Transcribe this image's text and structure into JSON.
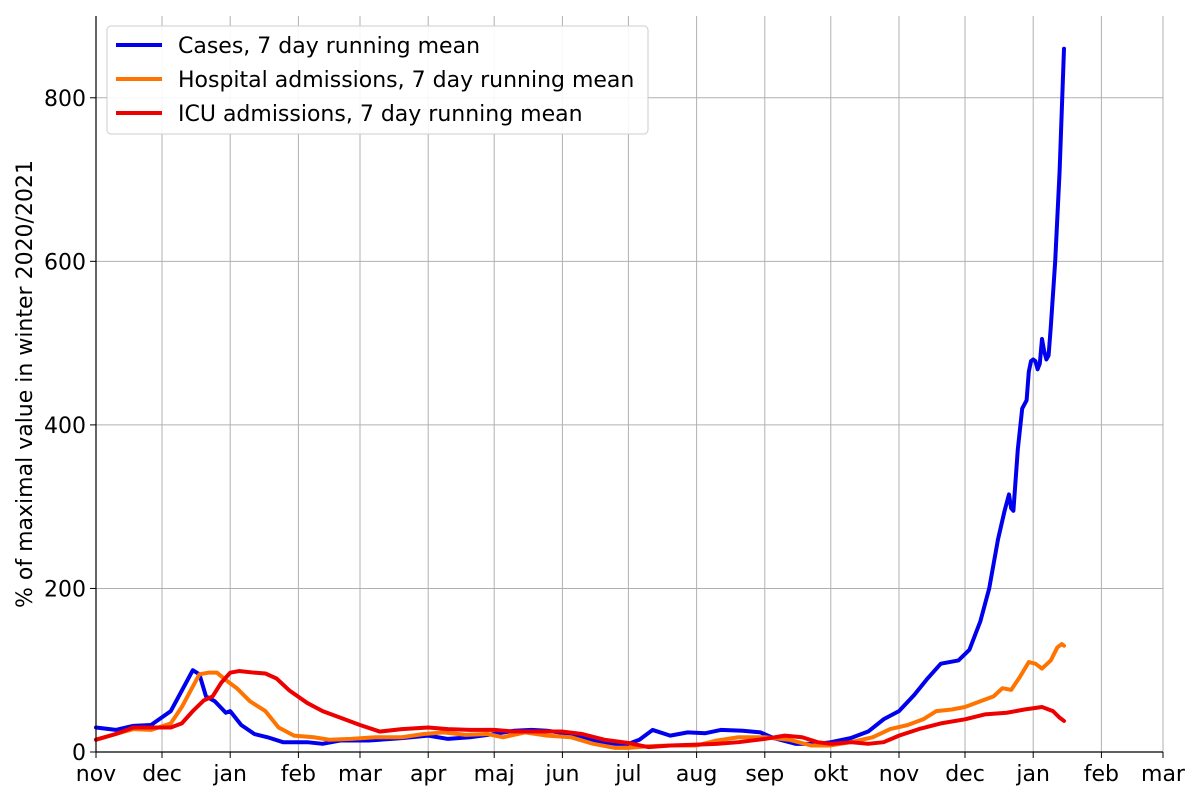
{
  "chart_data": {
    "type": "line",
    "ylabel": "% of maximal value in winter 2020/2021",
    "xlabel": "",
    "title": "",
    "x_range": [
      "2020-11-01",
      "2022-03-01"
    ],
    "ylim": [
      0,
      900
    ],
    "grid": true,
    "legend_position": "top-left",
    "x_ticks": [
      {
        "date": "2020-11-01",
        "label": "nov"
      },
      {
        "date": "2020-12-01",
        "label": "dec"
      },
      {
        "date": "2021-01-01",
        "label": "jan"
      },
      {
        "date": "2021-02-01",
        "label": "feb"
      },
      {
        "date": "2021-03-01",
        "label": "mar"
      },
      {
        "date": "2021-04-01",
        "label": "apr"
      },
      {
        "date": "2021-05-01",
        "label": "maj"
      },
      {
        "date": "2021-06-01",
        "label": "jun"
      },
      {
        "date": "2021-07-01",
        "label": "jul"
      },
      {
        "date": "2021-08-01",
        "label": "aug"
      },
      {
        "date": "2021-09-01",
        "label": "sep"
      },
      {
        "date": "2021-10-01",
        "label": "okt"
      },
      {
        "date": "2021-11-01",
        "label": "nov"
      },
      {
        "date": "2021-12-01",
        "label": "dec"
      },
      {
        "date": "2022-01-01",
        "label": "jan"
      },
      {
        "date": "2022-02-01",
        "label": "feb"
      },
      {
        "date": "2022-03-01",
        "label": "mar"
      }
    ],
    "y_ticks": [
      0,
      200,
      400,
      600,
      800
    ],
    "series": [
      {
        "name": "Cases, 7 day running mean",
        "color": "#0000ee",
        "points": [
          [
            "2020-11-01",
            30
          ],
          [
            "2020-11-10",
            27
          ],
          [
            "2020-11-18",
            32
          ],
          [
            "2020-11-26",
            33
          ],
          [
            "2020-12-05",
            50
          ],
          [
            "2020-12-12",
            85
          ],
          [
            "2020-12-15",
            100
          ],
          [
            "2020-12-18",
            95
          ],
          [
            "2020-12-21",
            68
          ],
          [
            "2020-12-25",
            62
          ],
          [
            "2020-12-30",
            48
          ],
          [
            "2021-01-01",
            50
          ],
          [
            "2021-01-06",
            33
          ],
          [
            "2021-01-12",
            22
          ],
          [
            "2021-01-18",
            18
          ],
          [
            "2021-01-25",
            12
          ],
          [
            "2021-02-05",
            12
          ],
          [
            "2021-02-12",
            10
          ],
          [
            "2021-02-20",
            14
          ],
          [
            "2021-03-05",
            14
          ],
          [
            "2021-03-20",
            17
          ],
          [
            "2021-04-01",
            20
          ],
          [
            "2021-04-10",
            16
          ],
          [
            "2021-04-20",
            18
          ],
          [
            "2021-05-01",
            22
          ],
          [
            "2021-05-10",
            26
          ],
          [
            "2021-05-18",
            27
          ],
          [
            "2021-05-25",
            26
          ],
          [
            "2021-06-05",
            22
          ],
          [
            "2021-06-15",
            14
          ],
          [
            "2021-06-25",
            10
          ],
          [
            "2021-07-01",
            10
          ],
          [
            "2021-07-06",
            15
          ],
          [
            "2021-07-12",
            27
          ],
          [
            "2021-07-20",
            20
          ],
          [
            "2021-07-28",
            24
          ],
          [
            "2021-08-05",
            23
          ],
          [
            "2021-08-12",
            27
          ],
          [
            "2021-08-22",
            26
          ],
          [
            "2021-08-30",
            24
          ],
          [
            "2021-09-05",
            17
          ],
          [
            "2021-09-15",
            10
          ],
          [
            "2021-09-25",
            10
          ],
          [
            "2021-10-01",
            12
          ],
          [
            "2021-10-10",
            17
          ],
          [
            "2021-10-18",
            25
          ],
          [
            "2021-10-25",
            40
          ],
          [
            "2021-11-01",
            50
          ],
          [
            "2021-11-08",
            70
          ],
          [
            "2021-11-14",
            90
          ],
          [
            "2021-11-20",
            108
          ],
          [
            "2021-11-24",
            110
          ],
          [
            "2021-11-28",
            112
          ],
          [
            "2021-12-03",
            125
          ],
          [
            "2021-12-08",
            160
          ],
          [
            "2021-12-12",
            200
          ],
          [
            "2021-12-16",
            260
          ],
          [
            "2021-12-19",
            295
          ],
          [
            "2021-12-21",
            315
          ],
          [
            "2021-12-22",
            298
          ],
          [
            "2021-12-23",
            295
          ],
          [
            "2021-12-25",
            370
          ],
          [
            "2021-12-27",
            420
          ],
          [
            "2021-12-29",
            430
          ],
          [
            "2021-12-30",
            465
          ],
          [
            "2021-12-31",
            478
          ],
          [
            "2022-01-01",
            480
          ],
          [
            "2022-01-02",
            478
          ],
          [
            "2022-01-03",
            468
          ],
          [
            "2022-01-04",
            475
          ],
          [
            "2022-01-05",
            505
          ],
          [
            "2022-01-06",
            490
          ],
          [
            "2022-01-07",
            480
          ],
          [
            "2022-01-08",
            485
          ],
          [
            "2022-01-09",
            520
          ],
          [
            "2022-01-11",
            600
          ],
          [
            "2022-01-13",
            710
          ],
          [
            "2022-01-15",
            860
          ]
        ]
      },
      {
        "name": "Hospital admissions, 7 day running mean",
        "color": "#ff7400",
        "points": [
          [
            "2020-11-01",
            15
          ],
          [
            "2020-11-10",
            22
          ],
          [
            "2020-11-18",
            28
          ],
          [
            "2020-11-26",
            27
          ],
          [
            "2020-12-05",
            35
          ],
          [
            "2020-12-10",
            55
          ],
          [
            "2020-12-15",
            80
          ],
          [
            "2020-12-18",
            95
          ],
          [
            "2020-12-22",
            97
          ],
          [
            "2020-12-26",
            97
          ],
          [
            "2020-12-30",
            88
          ],
          [
            "2021-01-04",
            78
          ],
          [
            "2021-01-10",
            62
          ],
          [
            "2021-01-17",
            50
          ],
          [
            "2021-01-23",
            30
          ],
          [
            "2021-01-30",
            20
          ],
          [
            "2021-02-08",
            18
          ],
          [
            "2021-02-15",
            15
          ],
          [
            "2021-02-25",
            16
          ],
          [
            "2021-03-08",
            18
          ],
          [
            "2021-03-20",
            18
          ],
          [
            "2021-03-30",
            22
          ],
          [
            "2021-04-08",
            24
          ],
          [
            "2021-04-18",
            21
          ],
          [
            "2021-04-28",
            22
          ],
          [
            "2021-05-05",
            18
          ],
          [
            "2021-05-15",
            24
          ],
          [
            "2021-05-25",
            20
          ],
          [
            "2021-06-05",
            18
          ],
          [
            "2021-06-15",
            10
          ],
          [
            "2021-06-25",
            5
          ],
          [
            "2021-07-01",
            5
          ],
          [
            "2021-07-10",
            7
          ],
          [
            "2021-07-20",
            8
          ],
          [
            "2021-08-01",
            8
          ],
          [
            "2021-08-10",
            14
          ],
          [
            "2021-08-20",
            18
          ],
          [
            "2021-09-01",
            18
          ],
          [
            "2021-09-12",
            15
          ],
          [
            "2021-09-22",
            8
          ],
          [
            "2021-10-01",
            8
          ],
          [
            "2021-10-10",
            12
          ],
          [
            "2021-10-20",
            18
          ],
          [
            "2021-10-28",
            28
          ],
          [
            "2021-11-05",
            33
          ],
          [
            "2021-11-12",
            40
          ],
          [
            "2021-11-18",
            50
          ],
          [
            "2021-11-25",
            52
          ],
          [
            "2021-12-01",
            55
          ],
          [
            "2021-12-08",
            62
          ],
          [
            "2021-12-14",
            68
          ],
          [
            "2021-12-18",
            78
          ],
          [
            "2021-12-22",
            76
          ],
          [
            "2021-12-26",
            92
          ],
          [
            "2021-12-30",
            110
          ],
          [
            "2022-01-02",
            108
          ],
          [
            "2022-01-05",
            102
          ],
          [
            "2022-01-09",
            112
          ],
          [
            "2022-01-12",
            128
          ],
          [
            "2022-01-14",
            132
          ],
          [
            "2022-01-15",
            130
          ]
        ]
      },
      {
        "name": "ICU admissions, 7 day running mean",
        "color": "#ee0000",
        "points": [
          [
            "2020-11-01",
            15
          ],
          [
            "2020-11-10",
            22
          ],
          [
            "2020-11-18",
            30
          ],
          [
            "2020-11-26",
            30
          ],
          [
            "2020-12-05",
            30
          ],
          [
            "2020-12-10",
            35
          ],
          [
            "2020-12-15",
            50
          ],
          [
            "2020-12-20",
            63
          ],
          [
            "2020-12-24",
            68
          ],
          [
            "2020-12-28",
            85
          ],
          [
            "2021-01-01",
            97
          ],
          [
            "2021-01-05",
            99
          ],
          [
            "2021-01-12",
            97
          ],
          [
            "2021-01-17",
            96
          ],
          [
            "2021-01-22",
            90
          ],
          [
            "2021-01-28",
            75
          ],
          [
            "2021-02-05",
            60
          ],
          [
            "2021-02-12",
            50
          ],
          [
            "2021-02-20",
            42
          ],
          [
            "2021-03-01",
            33
          ],
          [
            "2021-03-10",
            25
          ],
          [
            "2021-03-20",
            28
          ],
          [
            "2021-04-01",
            30
          ],
          [
            "2021-04-10",
            28
          ],
          [
            "2021-04-20",
            27
          ],
          [
            "2021-05-01",
            27
          ],
          [
            "2021-05-10",
            25
          ],
          [
            "2021-05-20",
            25
          ],
          [
            "2021-06-01",
            25
          ],
          [
            "2021-06-10",
            22
          ],
          [
            "2021-06-20",
            15
          ],
          [
            "2021-07-01",
            11
          ],
          [
            "2021-07-10",
            6
          ],
          [
            "2021-07-20",
            8
          ],
          [
            "2021-08-01",
            9
          ],
          [
            "2021-08-10",
            10
          ],
          [
            "2021-08-20",
            12
          ],
          [
            "2021-09-01",
            16
          ],
          [
            "2021-09-10",
            20
          ],
          [
            "2021-09-18",
            18
          ],
          [
            "2021-09-25",
            12
          ],
          [
            "2021-10-01",
            10
          ],
          [
            "2021-10-10",
            12
          ],
          [
            "2021-10-18",
            10
          ],
          [
            "2021-10-25",
            12
          ],
          [
            "2021-11-01",
            20
          ],
          [
            "2021-11-10",
            28
          ],
          [
            "2021-11-20",
            35
          ],
          [
            "2021-12-01",
            40
          ],
          [
            "2021-12-10",
            46
          ],
          [
            "2021-12-20",
            48
          ],
          [
            "2021-12-28",
            52
          ],
          [
            "2022-01-05",
            55
          ],
          [
            "2022-01-10",
            50
          ],
          [
            "2022-01-13",
            42
          ],
          [
            "2022-01-15",
            38
          ]
        ]
      }
    ]
  }
}
